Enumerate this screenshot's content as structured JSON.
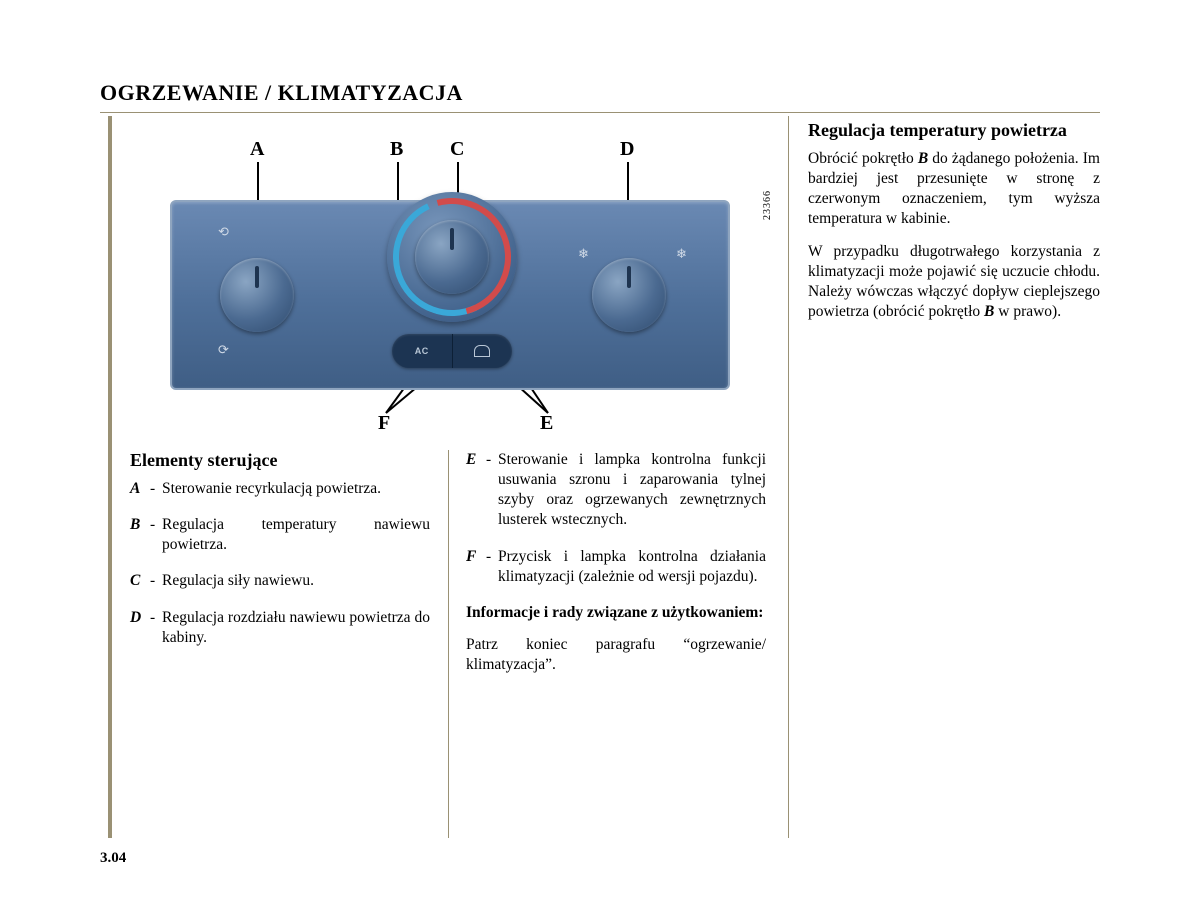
{
  "heading": "OGRZEWANIE / KLIMATYZACJA",
  "page_number": "3.04",
  "figure": {
    "labels": {
      "A": "A",
      "B": "B",
      "C": "C",
      "D": "D",
      "E": "E",
      "F": "F"
    },
    "ac_text": "AC",
    "image_code": "23366",
    "panel_bg_top": "#6a89b3",
    "panel_bg_bot": "#3f5e85",
    "cold_color": "#3aa8d8",
    "hot_color": "#d24b4b"
  },
  "col1": {
    "heading": "Elementy sterujące",
    "items": [
      {
        "label": "A",
        "text": "Sterowanie recyrkulacją powietrza."
      },
      {
        "label": "B",
        "text": "Regulacja temperatury nawiewu powietrza."
      },
      {
        "label": "C",
        "text": "Regulacja siły nawiewu."
      },
      {
        "label": "D",
        "text": "Regulacja rozdziału nawiewu powietrza do kabiny."
      }
    ]
  },
  "col2": {
    "items": [
      {
        "label": "E",
        "text": "Sterowanie i lampka kontrolna funkcji usuwania szronu i zaparowania tylnej szyby oraz ogrzewanych zewnętrznych lusterek wstecznych."
      },
      {
        "label": "F",
        "text": "Przycisk i lampka kontrolna działania klimatyzacji (zależnie od wersji pojazdu)."
      }
    ],
    "info_heading": "Informacje i rady związane z użytkowaniem:",
    "info_text": "Patrz koniec paragrafu “ogrzewanie/ klimatyzacja”."
  },
  "col3": {
    "heading": "Regulacja temperatury powietrza",
    "p1_pre": "Obrócić pokrętło ",
    "p1_bold": "B",
    "p1_post": " do żądanego położenia. Im bardziej jest przesunięte w stronę z czerwonym oznaczeniem, tym wyższa temperatura w kabinie.",
    "p2_pre": "W przypadku długotrwałego korzystania z klimatyzacji może pojawić się uczucie chłodu. Należy wówczas włączyć dopływ cieplejszego powietrza (obrócić pokrętło ",
    "p2_bold": "B",
    "p2_post": " w prawo)."
  }
}
